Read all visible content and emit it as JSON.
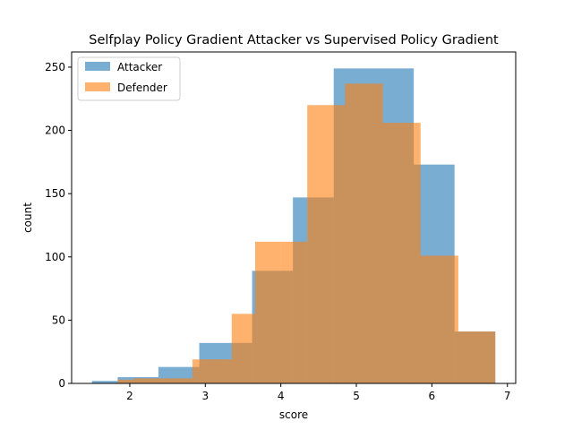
{
  "chart_data": {
    "type": "bar",
    "title": "Selfplay Policy Gradient Attacker vs Supervised Policy Gradient",
    "xlabel": "score",
    "ylabel": "count",
    "xlim": [
      1.23,
      7.11
    ],
    "ylim": [
      0,
      262
    ],
    "xticks": [
      2,
      3,
      4,
      5,
      6,
      7
    ],
    "yticks": [
      0,
      50,
      100,
      150,
      200,
      250
    ],
    "grid": false,
    "legend": "top-left",
    "series": [
      {
        "name": "Attacker",
        "color": "#1f77b4",
        "opacity": 0.6,
        "bins": [
          {
            "x0": 1.5,
            "x1": 1.84,
            "count": 2
          },
          {
            "x0": 1.84,
            "x1": 2.38,
            "count": 5
          },
          {
            "x0": 2.38,
            "x1": 2.92,
            "count": 13
          },
          {
            "x0": 2.92,
            "x1": 3.15,
            "count": 32
          },
          {
            "x0": 3.15,
            "x1": 3.62,
            "count": 32
          },
          {
            "x0": 3.62,
            "x1": 3.82,
            "count": 89
          },
          {
            "x0": 3.82,
            "x1": 4.16,
            "count": 89
          },
          {
            "x0": 4.16,
            "x1": 4.35,
            "count": 147
          },
          {
            "x0": 4.35,
            "x1": 4.7,
            "count": 147
          },
          {
            "x0": 4.7,
            "x1": 5.76,
            "count": 249
          },
          {
            "x0": 5.76,
            "x1": 6.3,
            "count": 173
          },
          {
            "x0": 6.3,
            "x1": 6.84,
            "count": 41
          }
        ]
      },
      {
        "name": "Defender",
        "color": "#ff7f0e",
        "opacity": 0.6,
        "bins": [
          {
            "x0": 1.84,
            "x1": 2.05,
            "count": 3
          },
          {
            "x0": 2.05,
            "x1": 2.83,
            "count": 4
          },
          {
            "x0": 2.83,
            "x1": 3.11,
            "count": 19
          },
          {
            "x0": 3.11,
            "x1": 3.35,
            "count": 19
          },
          {
            "x0": 3.35,
            "x1": 3.66,
            "count": 55
          },
          {
            "x0": 3.66,
            "x1": 4.0,
            "count": 112
          },
          {
            "x0": 4.0,
            "x1": 4.35,
            "count": 112
          },
          {
            "x0": 4.35,
            "x1": 4.7,
            "count": 220
          },
          {
            "x0": 4.7,
            "x1": 4.85,
            "count": 220
          },
          {
            "x0": 4.85,
            "x1": 5.35,
            "count": 237
          },
          {
            "x0": 5.35,
            "x1": 5.85,
            "count": 206
          },
          {
            "x0": 5.85,
            "x1": 6.35,
            "count": 101
          },
          {
            "x0": 6.35,
            "x1": 6.84,
            "count": 41
          }
        ]
      }
    ]
  }
}
